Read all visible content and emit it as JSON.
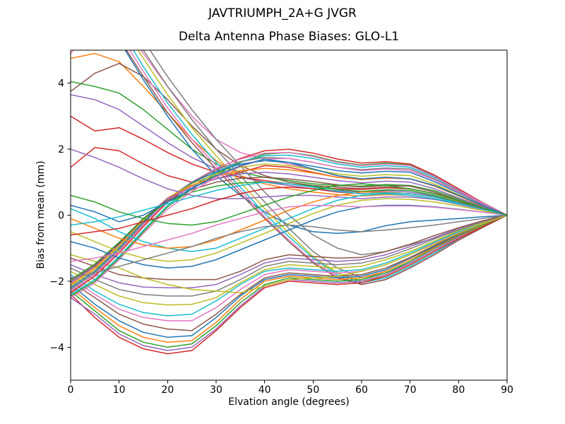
{
  "chart_data": {
    "type": "line",
    "suptitle": "JAVTRIUMPH_2A+G JVGR",
    "title": "Delta Antenna Phase Biases: GLO-L1",
    "xlabel": "Elvation angle (degrees)",
    "ylabel": "Bias from mean (mm)",
    "xlim": [
      0,
      90
    ],
    "ylim": [
      -5,
      5
    ],
    "xticks": [
      0,
      10,
      20,
      30,
      40,
      50,
      60,
      70,
      80,
      90
    ],
    "yticks": [
      -4,
      -2,
      0,
      2,
      4
    ],
    "grid": false,
    "legend": "none",
    "line_width": 1.5,
    "x": [
      0,
      5,
      10,
      15,
      20,
      25,
      30,
      35,
      40,
      45,
      50,
      55,
      60,
      65,
      70,
      75,
      80,
      85,
      90
    ],
    "series": [
      {
        "color": "#e377c2",
        "values": [
          4.9,
          5.8,
          5.9,
          4.9,
          3.9,
          3.0,
          2.3,
          1.9,
          1.7,
          1.55,
          1.4,
          1.2,
          1.1,
          1.15,
          1.1,
          0.9,
          0.6,
          0.3,
          0
        ]
      },
      {
        "color": "#ff7f0e",
        "values": [
          4.75,
          4.9,
          4.65,
          3.9,
          3.1,
          2.3,
          1.65,
          1.2,
          0.95,
          0.8,
          0.7,
          0.62,
          0.58,
          0.62,
          0.6,
          0.5,
          0.35,
          0.18,
          0
        ]
      },
      {
        "color": "#8c564b",
        "values": [
          3.75,
          4.3,
          4.6,
          4.2,
          3.5,
          2.7,
          2.0,
          1.5,
          1.2,
          1.0,
          0.9,
          0.85,
          0.8,
          0.85,
          0.8,
          0.66,
          0.45,
          0.22,
          0
        ]
      },
      {
        "color": "#2ca02c",
        "values": [
          4.05,
          3.9,
          3.7,
          3.2,
          2.6,
          2.0,
          1.55,
          1.3,
          1.15,
          1.05,
          0.95,
          0.9,
          0.88,
          0.93,
          0.9,
          0.74,
          0.5,
          0.25,
          0
        ]
      },
      {
        "color": "#9467bd",
        "values": [
          3.65,
          3.5,
          3.2,
          2.7,
          2.2,
          1.75,
          1.4,
          1.15,
          1.0,
          0.9,
          0.8,
          0.74,
          0.7,
          0.74,
          0.7,
          0.58,
          0.4,
          0.2,
          0
        ]
      },
      {
        "color": "#d62728",
        "values": [
          3.0,
          2.55,
          2.65,
          2.3,
          1.9,
          1.55,
          1.3,
          1.15,
          1.05,
          0.95,
          0.85,
          0.8,
          0.78,
          0.83,
          0.8,
          0.65,
          0.44,
          0.22,
          0
        ]
      },
      {
        "color": "#d62728",
        "values": [
          1.45,
          2.05,
          1.95,
          1.55,
          1.2,
          1.0,
          1.1,
          1.3,
          1.5,
          1.45,
          1.3,
          1.15,
          1.08,
          1.13,
          1.1,
          0.9,
          0.6,
          0.3,
          0
        ]
      },
      {
        "color": "#1f77b4",
        "values": [
          7.5,
          6.5,
          5.3,
          4.1,
          3.0,
          2.0,
          1.2,
          0.6,
          0.1,
          -0.3,
          -0.5,
          -0.55,
          -0.5,
          -0.32,
          -0.2,
          -0.15,
          -0.1,
          -0.05,
          0
        ]
      },
      {
        "color": "#7f7f7f",
        "values": [
          8.0,
          7.2,
          6.2,
          5.0,
          3.9,
          2.9,
          2.0,
          1.2,
          0.4,
          -0.4,
          -1.1,
          -1.6,
          -1.9,
          -1.75,
          -1.45,
          -1.05,
          -0.65,
          -0.3,
          0
        ]
      },
      {
        "color": "#bcbd22",
        "values": [
          7.8,
          7.0,
          5.9,
          4.75,
          3.65,
          2.65,
          1.8,
          1.0,
          0.2,
          -0.55,
          -1.25,
          -1.75,
          -2.0,
          -1.85,
          -1.5,
          -1.1,
          -0.7,
          -0.32,
          0
        ]
      },
      {
        "color": "#17becf",
        "values": [
          7.6,
          6.8,
          5.7,
          4.5,
          3.4,
          2.45,
          1.6,
          0.85,
          0.05,
          -0.65,
          -1.3,
          -1.8,
          -2.05,
          -1.9,
          -1.55,
          -1.15,
          -0.72,
          -0.35,
          0
        ]
      },
      {
        "color": "#e377c2",
        "values": [
          7.4,
          6.6,
          5.5,
          4.35,
          3.25,
          2.3,
          1.5,
          0.75,
          -0.05,
          -0.75,
          -1.4,
          -1.85,
          -2.1,
          -1.95,
          -1.6,
          -1.2,
          -0.75,
          -0.36,
          0
        ]
      },
      {
        "color": "#8c564b",
        "values": [
          7.2,
          6.4,
          5.35,
          4.2,
          3.1,
          2.2,
          1.4,
          0.65,
          -0.1,
          -0.8,
          -1.45,
          -1.9,
          -2.1,
          -1.95,
          -1.6,
          -1.2,
          -0.76,
          -0.37,
          0
        ]
      },
      {
        "color": "#7f7f7f",
        "values": [
          8.3,
          7.5,
          6.5,
          5.3,
          4.2,
          3.2,
          2.3,
          1.5,
          0.7,
          0.0,
          -0.6,
          -1.0,
          -1.2,
          -1.1,
          -0.9,
          -0.7,
          -0.45,
          -0.2,
          0
        ]
      },
      {
        "color": "#d62728",
        "values": [
          -2.4,
          -3.1,
          -3.7,
          -4.05,
          -4.2,
          -4.1,
          -3.5,
          -2.8,
          -2.2,
          -2.0,
          -2.05,
          -2.1,
          -2.05,
          -1.85,
          -1.5,
          -1.1,
          -0.7,
          -0.35,
          0
        ]
      },
      {
        "color": "#9467bd",
        "values": [
          -2.5,
          -3.0,
          -3.6,
          -3.95,
          -4.1,
          -4.0,
          -3.45,
          -2.75,
          -2.15,
          -1.95,
          -2.0,
          -2.05,
          -2.0,
          -1.8,
          -1.45,
          -1.05,
          -0.65,
          -0.3,
          0
        ]
      },
      {
        "color": "#2ca02c",
        "values": [
          -2.3,
          -2.9,
          -3.5,
          -3.85,
          -4.0,
          -3.9,
          -3.35,
          -2.65,
          -2.1,
          -1.9,
          -1.95,
          -2.0,
          -1.95,
          -1.75,
          -1.4,
          -1.0,
          -0.62,
          -0.3,
          0
        ]
      },
      {
        "color": "#ff7f0e",
        "values": [
          -2.2,
          -2.8,
          -3.35,
          -3.7,
          -3.85,
          -3.8,
          -3.25,
          -2.55,
          -2.0,
          -1.85,
          -1.9,
          -1.95,
          -1.9,
          -1.7,
          -1.35,
          -0.98,
          -0.6,
          -0.28,
          0
        ]
      },
      {
        "color": "#1f77b4",
        "values": [
          -2.1,
          -2.7,
          -3.2,
          -3.55,
          -3.7,
          -3.65,
          -3.1,
          -2.45,
          -1.95,
          -1.8,
          -1.85,
          -1.9,
          -1.85,
          -1.65,
          -1.3,
          -0.95,
          -0.58,
          -0.27,
          0
        ]
      },
      {
        "color": "#8c564b",
        "values": [
          -2.0,
          -2.5,
          -3.0,
          -3.3,
          -3.45,
          -3.5,
          -3.0,
          -2.4,
          -1.9,
          -1.75,
          -1.8,
          -1.85,
          -1.8,
          -1.6,
          -1.28,
          -0.92,
          -0.56,
          -0.26,
          0
        ]
      },
      {
        "color": "#e377c2",
        "values": [
          -1.9,
          -2.4,
          -2.85,
          -3.1,
          -3.2,
          -3.2,
          -2.8,
          -2.25,
          -1.8,
          -1.65,
          -1.7,
          -1.75,
          -1.7,
          -1.5,
          -1.2,
          -0.85,
          -0.52,
          -0.25,
          0
        ]
      },
      {
        "color": "#17becf",
        "values": [
          -1.8,
          -2.3,
          -2.7,
          -2.95,
          -3.05,
          -3.0,
          -2.6,
          -2.1,
          -1.7,
          -1.6,
          -1.65,
          -1.7,
          -1.65,
          -1.45,
          -1.15,
          -0.82,
          -0.5,
          -0.23,
          0
        ]
      },
      {
        "color": "#bcbd22",
        "values": [
          -1.7,
          -2.1,
          -2.45,
          -2.65,
          -2.72,
          -2.7,
          -2.5,
          -2.05,
          -1.65,
          -1.5,
          -1.55,
          -1.6,
          -1.55,
          -1.35,
          -1.1,
          -0.78,
          -0.47,
          -0.22,
          0
        ]
      },
      {
        "color": "#7f7f7f",
        "values": [
          -1.6,
          -1.95,
          -2.25,
          -2.4,
          -2.45,
          -2.45,
          -2.3,
          -1.95,
          -1.55,
          -1.4,
          -1.45,
          -1.5,
          -1.45,
          -1.28,
          -1.02,
          -0.72,
          -0.44,
          -0.2,
          0
        ]
      },
      {
        "color": "#9467bd",
        "values": [
          -1.5,
          -1.8,
          -2.05,
          -2.18,
          -2.2,
          -2.2,
          -2.1,
          -1.8,
          -1.45,
          -1.3,
          -1.35,
          -1.4,
          -1.35,
          -1.2,
          -0.95,
          -0.68,
          -0.4,
          -0.18,
          0
        ]
      },
      {
        "color": "#8c564b",
        "values": [
          -1.3,
          -1.55,
          -1.8,
          -1.9,
          -1.95,
          -1.95,
          -1.95,
          -1.7,
          -1.35,
          -1.2,
          -1.25,
          -1.3,
          -1.28,
          -1.1,
          -0.88,
          -0.62,
          -0.38,
          -0.17,
          0
        ]
      },
      {
        "color": "#bcbd22",
        "values": [
          -1.2,
          -1.4,
          -1.6,
          -1.9,
          -2.1,
          -2.25,
          -2.3,
          -2.35,
          -2.15,
          -1.95,
          -1.9,
          -1.85,
          -1.7,
          -1.5,
          -1.2,
          -0.88,
          -0.55,
          -0.26,
          0
        ]
      },
      {
        "color": "#2ca02c",
        "values": [
          -2.45,
          -2.0,
          -1.3,
          -0.5,
          0.25,
          0.8,
          1.25,
          1.6,
          1.85,
          1.9,
          1.8,
          1.62,
          1.52,
          1.58,
          1.52,
          1.2,
          0.78,
          0.38,
          0
        ]
      },
      {
        "color": "#17becf",
        "values": [
          -2.4,
          -1.95,
          -1.25,
          -0.45,
          0.3,
          0.85,
          1.3,
          1.62,
          1.8,
          1.82,
          1.72,
          1.55,
          1.45,
          1.5,
          1.45,
          1.15,
          0.75,
          0.36,
          0
        ]
      },
      {
        "color": "#d62728",
        "values": [
          -2.35,
          -1.85,
          -1.15,
          -0.35,
          0.4,
          0.95,
          1.4,
          1.72,
          1.95,
          2.0,
          1.88,
          1.7,
          1.58,
          1.62,
          1.55,
          1.22,
          0.8,
          0.38,
          0
        ]
      },
      {
        "color": "#e377c2",
        "values": [
          -2.3,
          -1.8,
          -1.1,
          -0.3,
          0.45,
          1.0,
          1.42,
          1.7,
          1.88,
          1.9,
          1.78,
          1.6,
          1.5,
          1.55,
          1.5,
          1.18,
          0.76,
          0.37,
          0
        ]
      },
      {
        "color": "#7f7f7f",
        "values": [
          -2.25,
          -1.75,
          -1.05,
          -0.25,
          0.5,
          1.0,
          1.38,
          1.62,
          1.75,
          1.72,
          1.6,
          1.45,
          1.38,
          1.43,
          1.4,
          1.1,
          0.72,
          0.35,
          0
        ]
      },
      {
        "color": "#1f77b4",
        "values": [
          -2.2,
          -1.7,
          -1.0,
          -0.2,
          0.5,
          0.98,
          1.32,
          1.55,
          1.65,
          1.6,
          1.48,
          1.35,
          1.28,
          1.33,
          1.3,
          1.02,
          0.67,
          0.33,
          0
        ]
      },
      {
        "color": "#bcbd22",
        "values": [
          -2.15,
          -1.65,
          -0.95,
          -0.15,
          0.52,
          0.95,
          1.25,
          1.45,
          1.55,
          1.5,
          1.38,
          1.25,
          1.18,
          1.23,
          1.2,
          0.95,
          0.62,
          0.3,
          0
        ]
      },
      {
        "color": "#ff7f0e",
        "values": [
          -2.1,
          -1.6,
          -0.9,
          -0.12,
          0.52,
          0.9,
          1.18,
          1.35,
          1.42,
          1.38,
          1.28,
          1.15,
          1.08,
          1.13,
          1.1,
          0.88,
          0.58,
          0.28,
          0
        ]
      },
      {
        "color": "#9467bd",
        "values": [
          -2.05,
          -1.55,
          -0.88,
          -0.1,
          0.5,
          0.85,
          1.1,
          1.25,
          1.3,
          1.25,
          1.15,
          1.05,
          0.98,
          1.03,
          1.0,
          0.8,
          0.52,
          0.26,
          0
        ]
      },
      {
        "color": "#8c564b",
        "values": [
          -2.0,
          -1.52,
          -0.85,
          -0.1,
          0.45,
          0.78,
          1.0,
          1.12,
          1.15,
          1.1,
          1.02,
          0.92,
          0.85,
          0.9,
          0.88,
          0.7,
          0.46,
          0.22,
          0
        ]
      },
      {
        "color": "#2ca02c",
        "values": [
          -1.95,
          -1.48,
          -0.82,
          -0.1,
          0.4,
          0.7,
          0.88,
          0.98,
          1.0,
          0.95,
          0.88,
          0.78,
          0.72,
          0.77,
          0.75,
          0.6,
          0.4,
          0.2,
          0
        ]
      },
      {
        "color": "#e377c2",
        "values": [
          -2.5,
          -2.05,
          -1.35,
          -0.55,
          0.18,
          0.72,
          1.15,
          1.48,
          1.7,
          1.72,
          1.6,
          1.45,
          1.35,
          1.4,
          1.35,
          1.07,
          0.7,
          0.34,
          0
        ]
      },
      {
        "color": "#1f77b4",
        "values": [
          0.3,
          0.1,
          -0.2,
          0.0,
          0.4,
          0.8,
          1.2,
          1.5,
          1.7,
          1.6,
          1.4,
          1.2,
          1.1,
          1.15,
          1.1,
          0.9,
          0.6,
          0.3,
          0
        ]
      },
      {
        "color": "#9467bd",
        "values": [
          2.0,
          1.75,
          1.45,
          1.1,
          0.8,
          0.6,
          0.5,
          0.5,
          0.55,
          0.6,
          0.6,
          0.55,
          0.5,
          0.55,
          0.55,
          0.48,
          0.33,
          0.17,
          0
        ]
      },
      {
        "color": "#17becf",
        "values": [
          0.2,
          -0.1,
          -0.5,
          -0.8,
          -1.0,
          -1.1,
          -1.0,
          -0.7,
          -0.4,
          -0.1,
          0.2,
          0.45,
          0.6,
          0.65,
          0.6,
          0.5,
          0.35,
          0.18,
          0
        ]
      },
      {
        "color": "#bcbd22",
        "values": [
          -0.5,
          -0.8,
          -1.1,
          -1.3,
          -1.4,
          -1.35,
          -1.15,
          -0.85,
          -0.55,
          -0.25,
          0.05,
          0.3,
          0.45,
          0.5,
          0.48,
          0.4,
          0.28,
          0.14,
          0
        ]
      },
      {
        "color": "#1f77b4",
        "values": [
          -0.8,
          -1.0,
          -1.3,
          -1.5,
          -1.6,
          -1.55,
          -1.35,
          -1.05,
          -0.75,
          -0.45,
          -0.15,
          0.1,
          0.25,
          0.3,
          0.3,
          0.25,
          0.18,
          0.09,
          0
        ]
      },
      {
        "color": "#ff7f0e",
        "values": [
          -0.1,
          -0.4,
          -0.7,
          -0.9,
          -1.0,
          -0.95,
          -0.75,
          -0.45,
          -0.15,
          0.15,
          0.4,
          0.6,
          0.7,
          0.7,
          0.65,
          0.55,
          0.38,
          0.19,
          0
        ]
      },
      {
        "color": "#d62728",
        "values": [
          -0.6,
          -0.5,
          -0.4,
          -0.2,
          0.0,
          0.2,
          0.45,
          0.65,
          0.8,
          0.85,
          0.8,
          0.7,
          0.65,
          0.68,
          0.65,
          0.55,
          0.38,
          0.19,
          0
        ]
      },
      {
        "color": "#e377c2",
        "values": [
          -1.4,
          -1.3,
          -1.15,
          -0.95,
          -0.75,
          -0.55,
          -0.3,
          -0.1,
          0.1,
          0.25,
          0.3,
          0.28,
          0.25,
          0.28,
          0.28,
          0.24,
          0.17,
          0.09,
          0
        ]
      },
      {
        "color": "#7f7f7f",
        "values": [
          -1.9,
          -1.75,
          -1.55,
          -1.35,
          -1.15,
          -0.95,
          -0.7,
          -0.5,
          -0.35,
          -0.3,
          -0.35,
          -0.45,
          -0.5,
          -0.45,
          -0.38,
          -0.3,
          -0.2,
          -0.1,
          0
        ]
      },
      {
        "color": "#17becf",
        "values": [
          -0.3,
          -0.2,
          -0.05,
          0.15,
          0.35,
          0.55,
          0.75,
          0.9,
          1.0,
          0.95,
          0.85,
          0.72,
          0.65,
          0.68,
          0.65,
          0.55,
          0.37,
          0.18,
          0
        ]
      },
      {
        "color": "#2ca02c",
        "values": [
          0.6,
          0.4,
          0.1,
          -0.1,
          -0.25,
          -0.3,
          -0.2,
          0.05,
          0.3,
          0.55,
          0.75,
          0.9,
          0.95,
          0.9,
          0.8,
          0.65,
          0.45,
          0.22,
          0
        ]
      }
    ]
  }
}
